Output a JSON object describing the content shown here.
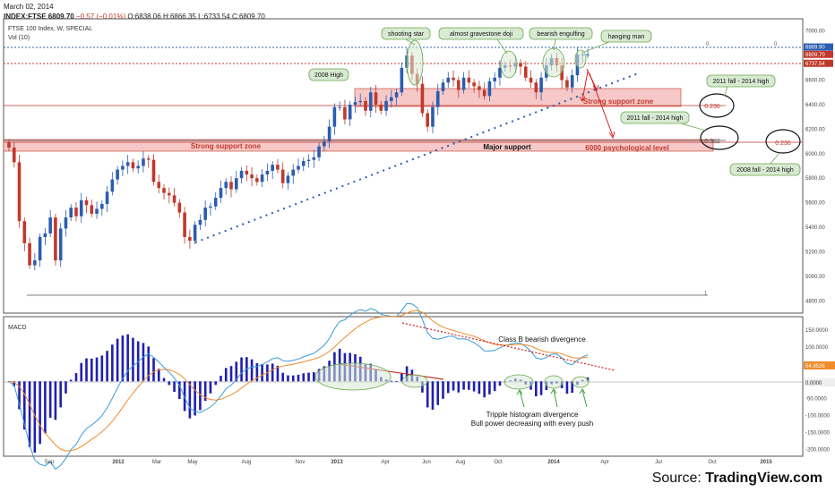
{
  "header": {
    "date": "March 02, 2014",
    "symbol": "INDEX:FTSE",
    "last": "6809.70",
    "change": "−0.57 (−0.01%)",
    "open": "O:6838.06",
    "high": "H:6866.35",
    "low": "L:6733.54",
    "close": "C:6809.70"
  },
  "panel_title": "FTSE 100 Index, W, SPECIAL",
  "vol_label": "Vol (10)",
  "macd_label": "MACD",
  "credit": {
    "source": "Source: ",
    "brand": "TradingView.com"
  },
  "colors": {
    "up": "#2a5db0",
    "down": "#c0392b",
    "macd": "#3a9ad9",
    "signal": "#f08a2a",
    "hist": "#1f1fb0",
    "zone": "#f7c8c8",
    "callout": "#d9ead3"
  },
  "chart_data": [
    {
      "type": "candlestick",
      "title": "FTSE 100 Index, W, SPECIAL",
      "ylim": [
        4700,
        7100
      ],
      "y_ticks": [
        "7000.00",
        "6800.00",
        "6600.00",
        "6400.00",
        "6200.00",
        "6000.00",
        "5800.00",
        "5600.00",
        "5400.00",
        "5200.00",
        "5000.00",
        "4800.00"
      ],
      "x_ticks": [
        "Sep",
        "2012",
        "Mar",
        "May",
        "Aug",
        "Nov",
        "2013",
        "Apr",
        "Jun",
        "Aug",
        "Oct",
        "2014",
        "Apr",
        "Jul",
        "Oct",
        "2015"
      ],
      "price_labels": [
        "6869.90",
        "6809.70",
        "6737.54"
      ],
      "key_levels": {
        "top_blue": 6870,
        "close_red": 6810,
        "fib_0236_a": 6390,
        "fib_0382": 6085,
        "line_6000": 6000
      },
      "zones": [
        {
          "label": "Strong support zone",
          "from": 6040,
          "to": 6105
        },
        {
          "label": "Strong support zone",
          "from": 6400,
          "to": 6530
        }
      ],
      "annotations": [
        "shooting star",
        "almost gravestone doji",
        "bearish engulfing",
        "hanging man",
        "2008 High",
        "Strong support zone",
        "Strong support zone",
        "Major support",
        "6000 psychological level",
        "2011 fall - 2014 high",
        "2011 fall - 2014 high",
        "2008 fall - 2014 high",
        "0.236",
        "0.382",
        "0.236",
        "0",
        "0",
        "1"
      ],
      "closes": [
        6050,
        5930,
        5450,
        5270,
        5090,
        5130,
        5320,
        5350,
        5480,
        5130,
        5390,
        5480,
        5560,
        5490,
        5620,
        5580,
        5510,
        5550,
        5590,
        5690,
        5790,
        5870,
        5900,
        5930,
        5880,
        5900,
        5960,
        5950,
        5770,
        5720,
        5680,
        5660,
        5600,
        5520,
        5320,
        5290,
        5420,
        5460,
        5560,
        5570,
        5640,
        5720,
        5770,
        5710,
        5800,
        5860,
        5830,
        5800,
        5770,
        5830,
        5860,
        5910,
        5870,
        5760,
        5820,
        5870,
        5900,
        5940,
        5950,
        5970,
        6060,
        6100,
        6220,
        6380,
        6380,
        6280,
        6400,
        6420,
        6430,
        6350,
        6500,
        6400,
        6350,
        6430,
        6460,
        6500,
        6700,
        6800,
        6650,
        6570,
        6330,
        6220,
        6380,
        6510,
        6580,
        6620,
        6600,
        6520,
        6620,
        6580,
        6550,
        6520,
        6470,
        6590,
        6620,
        6700,
        6720,
        6710,
        6740,
        6710,
        6620,
        6580,
        6500,
        6620,
        6720,
        6780,
        6720,
        6600,
        6540,
        6640,
        6810,
        6810,
        6810
      ],
      "macd_ylim": [
        -220,
        190
      ],
      "macd_ticks": [
        "150.0000",
        "100.0000",
        "50.0000",
        "0.0000",
        "-50.0000",
        "-100.0000",
        "-150.0000",
        "-200.0000"
      ],
      "macd_values": [
        "54.8536",
        "0.0000"
      ],
      "macd_annotations": [
        "Class B bearish divergence",
        "Tripple histogram divergence",
        "Bull power decreasing with every push"
      ]
    }
  ]
}
